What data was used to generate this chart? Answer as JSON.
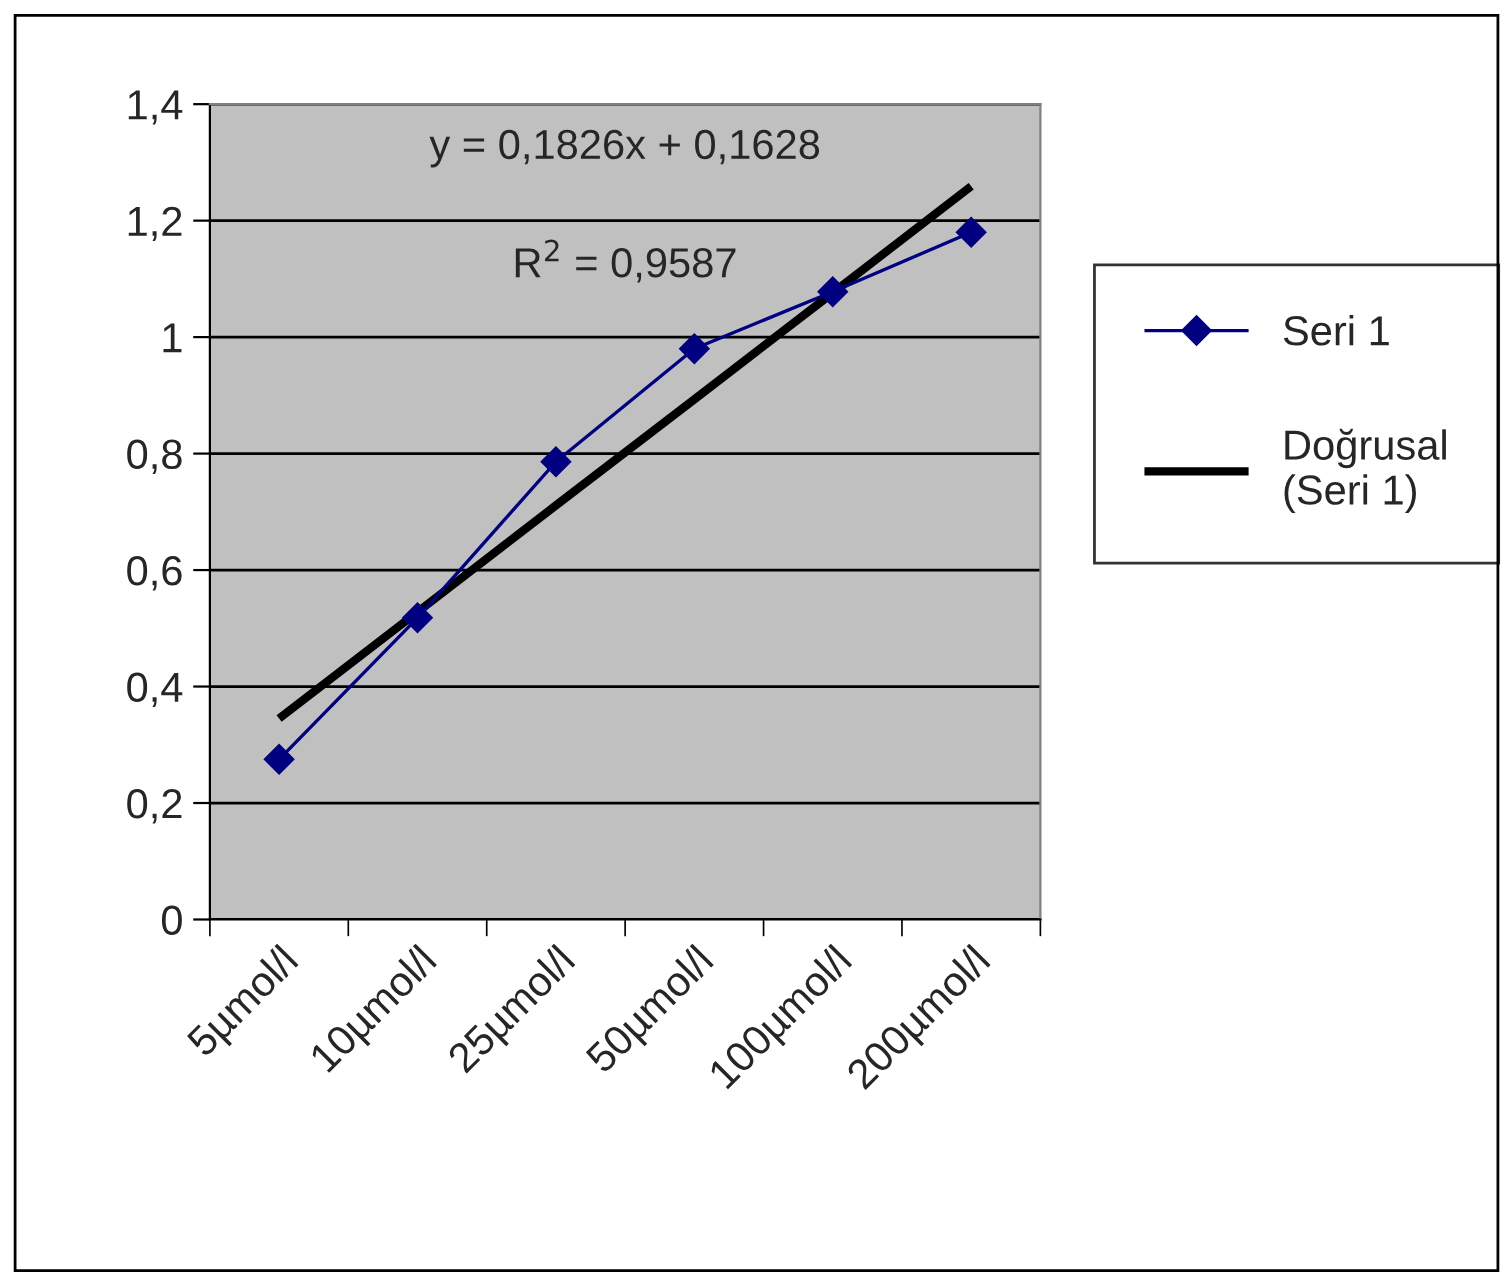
{
  "chart_data": {
    "type": "line",
    "categories": [
      "5µmol/l",
      "10µmol/l",
      "25µmol/l",
      "50µmol/l",
      "100µmol/l",
      "200µmol/l"
    ],
    "series": [
      {
        "name": "Seri 1",
        "color": "#000080",
        "values": [
          0.275,
          0.518,
          0.786,
          0.98,
          1.078,
          1.18
        ],
        "marker": "diamond"
      },
      {
        "name": "Doğrusal\n(Seri 1)",
        "color": "#000000",
        "values": [
          0.345,
          0.528,
          0.711,
          0.893,
          1.076,
          1.259
        ],
        "marker": "none"
      }
    ],
    "ylim": [
      0,
      1.4
    ],
    "yticks": [
      {
        "value": 0,
        "label": "0"
      },
      {
        "value": 0.2,
        "label": "0,2"
      },
      {
        "value": 0.4,
        "label": "0,4"
      },
      {
        "value": 0.6,
        "label": "0,6"
      },
      {
        "value": 0.8,
        "label": "0,8"
      },
      {
        "value": 1,
        "label": "1"
      },
      {
        "value": 1.2,
        "label": "1,2"
      },
      {
        "value": 1.4,
        "label": "1,4"
      }
    ],
    "grid": "y",
    "legend": "right",
    "annotations": [
      "y = 0,1826x + 0,1628",
      "R$^{2}$ = 0,9587"
    ]
  }
}
